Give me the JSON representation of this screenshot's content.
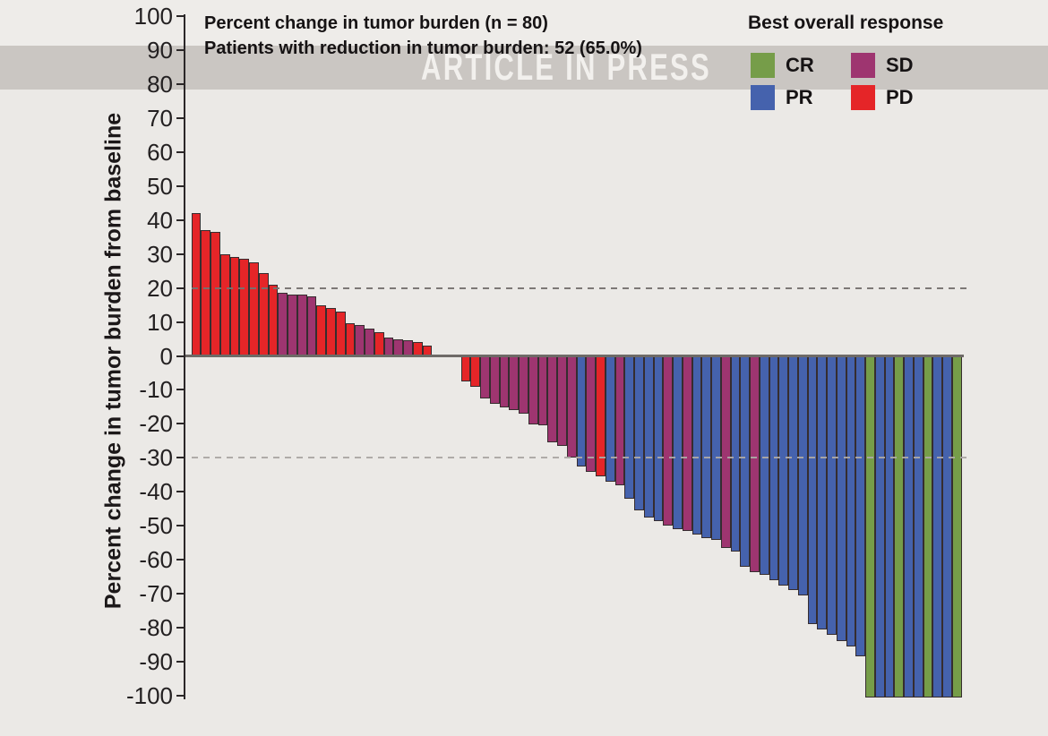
{
  "watermark": "ARTICLE IN PRESS",
  "title_line1": "Percent change in tumor burden (n = 80)",
  "title_line2": "Patients with reduction in tumor burden: 52 (65.0%)",
  "legend": {
    "title": "Best overall response",
    "items": [
      {
        "label": "CR",
        "response": "CR"
      },
      {
        "label": "SD",
        "response": "SD"
      },
      {
        "label": "PR",
        "response": "PR"
      },
      {
        "label": "PD",
        "response": "PD"
      }
    ]
  },
  "chart_data": {
    "type": "bar",
    "subtype": "waterfall",
    "n": 80,
    "title": "Percent change in tumor burden (n = 80)",
    "subtitle": "Patients with reduction in tumor burden: 52 (65.0%)",
    "ylabel": "Percent change in tumor burden from baseline",
    "ylim": [
      -100,
      100
    ],
    "yticks": [
      100,
      90,
      80,
      70,
      60,
      50,
      40,
      30,
      20,
      10,
      0,
      -10,
      -20,
      -30,
      -40,
      -50,
      -60,
      -70,
      -80,
      -90,
      -100
    ],
    "reference_lines": [
      20,
      -30
    ],
    "grid": false,
    "legend_position": "top-right",
    "colors": {
      "CR": "#769d49",
      "PR": "#4562ad",
      "SD": "#9e3570",
      "PD": "#e52528"
    },
    "bars": [
      [
        42,
        "PD"
      ],
      [
        37,
        "PD"
      ],
      [
        36.5,
        "PD"
      ],
      [
        30,
        "PD"
      ],
      [
        29,
        "PD"
      ],
      [
        28.5,
        "PD"
      ],
      [
        27.5,
        "PD"
      ],
      [
        24.5,
        "PD"
      ],
      [
        21,
        "PD"
      ],
      [
        18.5,
        "SD"
      ],
      [
        18,
        "SD"
      ],
      [
        18,
        "SD"
      ],
      [
        17.5,
        "SD"
      ],
      [
        15,
        "PD"
      ],
      [
        14,
        "PD"
      ],
      [
        13,
        "PD"
      ],
      [
        9.5,
        "PD"
      ],
      [
        9,
        "SD"
      ],
      [
        8,
        "SD"
      ],
      [
        7,
        "PD"
      ],
      [
        5.5,
        "SD"
      ],
      [
        5,
        "SD"
      ],
      [
        4.5,
        "SD"
      ],
      [
        4,
        "PD"
      ],
      [
        3,
        "PD"
      ],
      [
        0,
        "SD"
      ],
      [
        0,
        "SD"
      ],
      [
        0,
        "SD"
      ],
      [
        -7,
        "PD"
      ],
      [
        -8.5,
        "PD"
      ],
      [
        -12,
        "SD"
      ],
      [
        -13.5,
        "SD"
      ],
      [
        -14.5,
        "SD"
      ],
      [
        -15.5,
        "SD"
      ],
      [
        -16.5,
        "SD"
      ],
      [
        -19.5,
        "SD"
      ],
      [
        -20,
        "SD"
      ],
      [
        -25,
        "SD"
      ],
      [
        -26,
        "SD"
      ],
      [
        -29.5,
        "SD"
      ],
      [
        -32,
        "PR"
      ],
      [
        -33.5,
        "SD"
      ],
      [
        -35,
        "PD"
      ],
      [
        -36.5,
        "PR"
      ],
      [
        -37.5,
        "SD"
      ],
      [
        -41.5,
        "PR"
      ],
      [
        -45,
        "PR"
      ],
      [
        -47,
        "PR"
      ],
      [
        -48,
        "PR"
      ],
      [
        -49.5,
        "SD"
      ],
      [
        -50.5,
        "PR"
      ],
      [
        -51,
        "SD"
      ],
      [
        -52,
        "PR"
      ],
      [
        -53,
        "PR"
      ],
      [
        -53.5,
        "PR"
      ],
      [
        -56,
        "SD"
      ],
      [
        -57,
        "PR"
      ],
      [
        -61.5,
        "PR"
      ],
      [
        -63,
        "SD"
      ],
      [
        -64,
        "PR"
      ],
      [
        -65.5,
        "PR"
      ],
      [
        -67,
        "PR"
      ],
      [
        -68.5,
        "PR"
      ],
      [
        -70,
        "PR"
      ],
      [
        -78.5,
        "PR"
      ],
      [
        -80,
        "PR"
      ],
      [
        -81.5,
        "PR"
      ],
      [
        -83.5,
        "PR"
      ],
      [
        -85,
        "PR"
      ],
      [
        -88,
        "PR"
      ],
      [
        -100,
        "CR"
      ],
      [
        -100,
        "PR"
      ],
      [
        -100,
        "PR"
      ],
      [
        -100,
        "CR"
      ],
      [
        -100,
        "PR"
      ],
      [
        -100,
        "PR"
      ],
      [
        -100,
        "CR"
      ],
      [
        -100,
        "PR"
      ],
      [
        -100,
        "PR"
      ],
      [
        -100,
        "CR"
      ]
    ]
  }
}
